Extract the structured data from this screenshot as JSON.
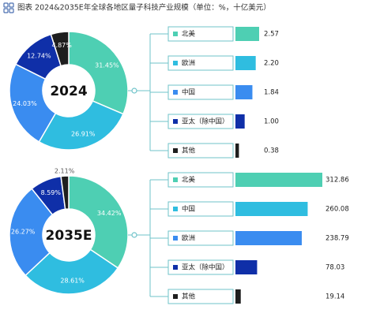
{
  "title": "图表 2024&2035E年全球各地区量子科技产业规模（单位：%，十亿美元）",
  "chart_data": [
    {
      "type": "donut",
      "center_label": "2024",
      "categories": [
        "北美",
        "欧洲",
        "中国",
        "亚太（除中国）",
        "其他"
      ],
      "colors": [
        "#4ecfb3",
        "#2fbde0",
        "#3a8cf0",
        "#0f2fa8",
        "#1e1e1e"
      ],
      "values": [
        31.45,
        26.91,
        24.03,
        12.74,
        4.87
      ],
      "value_labels": [
        "31.45%",
        "26.91%",
        "24.03%",
        "12.74%",
        "4.87%"
      ]
    },
    {
      "type": "bar",
      "categories": [
        "北美",
        "欧洲",
        "中国",
        "亚太（除中国）",
        "其他"
      ],
      "colors": [
        "#4ecfb3",
        "#2fbde0",
        "#3a8cf0",
        "#0f2fa8",
        "#1e1e1e"
      ],
      "values": [
        2.57,
        2.2,
        1.84,
        1.0,
        0.38
      ],
      "value_labels": [
        "2.57",
        "2.20",
        "1.84",
        "1.00",
        "0.38"
      ]
    },
    {
      "type": "donut",
      "center_label": "2035E",
      "categories": [
        "北美",
        "中国",
        "欧洲",
        "亚太（除中国）",
        "其他"
      ],
      "colors": [
        "#4ecfb3",
        "#2fbde0",
        "#3a8cf0",
        "#0f2fa8",
        "#1e1e1e"
      ],
      "values": [
        34.42,
        28.61,
        26.27,
        8.59,
        2.11
      ],
      "value_labels": [
        "34.42%",
        "28.61%",
        "26.27%",
        "8.59%",
        "2.11%"
      ]
    },
    {
      "type": "bar",
      "categories": [
        "北美",
        "中国",
        "欧洲",
        "亚太（除中国）",
        "其他"
      ],
      "colors": [
        "#4ecfb3",
        "#2fbde0",
        "#3a8cf0",
        "#0f2fa8",
        "#1e1e1e"
      ],
      "values": [
        312.86,
        260.08,
        238.79,
        78.03,
        19.14
      ],
      "value_labels": [
        "312.86",
        "260.08",
        "238.79",
        "78.03",
        "19.14"
      ]
    }
  ]
}
